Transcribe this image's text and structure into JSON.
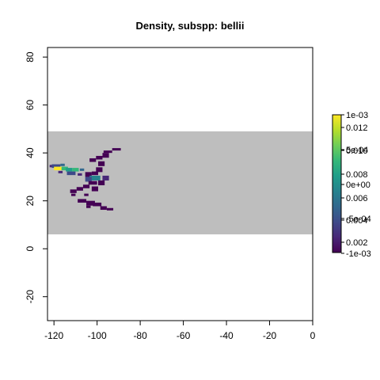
{
  "chart_data": {
    "type": "heatmap",
    "title": "Density, subspp: bellii",
    "xlabel": "",
    "ylabel": "",
    "xlim": [
      -123,
      0
    ],
    "ylim": [
      -30,
      84
    ],
    "x_ticks": [
      -120,
      -100,
      -80,
      -60,
      -40,
      -20,
      0
    ],
    "y_ticks": [
      -20,
      0,
      20,
      40,
      60,
      80
    ],
    "x_tick_labels": [
      "-120",
      "-100",
      "-80",
      "-60",
      "-40",
      "-20",
      "0"
    ],
    "y_tick_labels": [
      "-20",
      "0",
      "20",
      "40",
      "60",
      "80"
    ],
    "background_band": {
      "ymin": 6,
      "ymax": 49,
      "color": "#bebebe"
    },
    "colorscale": "viridis",
    "legend_position": "right",
    "legend_labels": [
      "1e-03",
      "0.012",
      "5e-04",
      "0.010",
      "0.008",
      "0e+00",
      "0.006",
      "-5e-04",
      "0.004",
      "0.002",
      "-1e-03"
    ],
    "cells": [
      {
        "x": -91,
        "y": 41.5,
        "w": 4,
        "h": 1,
        "v": 0.0005
      },
      {
        "x": -95,
        "y": 40.5,
        "w": 4,
        "h": 1,
        "v": 0.0006
      },
      {
        "x": -96,
        "y": 39,
        "w": 3,
        "h": 2,
        "v": 0.0005
      },
      {
        "x": -99,
        "y": 38,
        "w": 3,
        "h": 1.5,
        "v": 0.0007
      },
      {
        "x": -102,
        "y": 37,
        "w": 3,
        "h": 1.5,
        "v": 0.0005
      },
      {
        "x": -98,
        "y": 35.5,
        "w": 3,
        "h": 2,
        "v": 0.0008
      },
      {
        "x": -99,
        "y": 33,
        "w": 3,
        "h": 2,
        "v": 0.001
      },
      {
        "x": -101,
        "y": 31.5,
        "w": 3,
        "h": 1.5,
        "v": 0.0012
      },
      {
        "x": -104,
        "y": 31,
        "w": 3,
        "h": 2,
        "v": 0.0012
      },
      {
        "x": -101,
        "y": 29.5,
        "w": 5,
        "h": 2,
        "v": 0.0055
      },
      {
        "x": -104,
        "y": 29,
        "w": 3,
        "h": 2,
        "v": 0.003
      },
      {
        "x": -96,
        "y": 29.5,
        "w": 3,
        "h": 2,
        "v": 0.0015
      },
      {
        "x": -98,
        "y": 27.5,
        "w": 3,
        "h": 2,
        "v": 0.001
      },
      {
        "x": -102,
        "y": 27.5,
        "w": 4,
        "h": 1.5,
        "v": 0.0012
      },
      {
        "x": -105,
        "y": 26,
        "w": 3,
        "h": 1.5,
        "v": 0.0008
      },
      {
        "x": -101,
        "y": 25,
        "w": 3,
        "h": 2,
        "v": 0.0009
      },
      {
        "x": -108,
        "y": 25,
        "w": 3,
        "h": 1.5,
        "v": 0.0007
      },
      {
        "x": -111,
        "y": 24,
        "w": 3,
        "h": 1.5,
        "v": 0.0006
      },
      {
        "x": -111,
        "y": 22.5,
        "w": 2,
        "h": 1,
        "v": 0.0005
      },
      {
        "x": -105,
        "y": 22.5,
        "w": 2,
        "h": 1,
        "v": 0.0004
      },
      {
        "x": -107,
        "y": 20,
        "w": 4,
        "h": 1.5,
        "v": 0.0008
      },
      {
        "x": -103,
        "y": 19,
        "w": 4,
        "h": 2,
        "v": 0.001
      },
      {
        "x": -100,
        "y": 18.5,
        "w": 4,
        "h": 1.5,
        "v": 0.0008
      },
      {
        "x": -97,
        "y": 17,
        "w": 3,
        "h": 1.5,
        "v": 0.0007
      },
      {
        "x": -94,
        "y": 16.5,
        "w": 3,
        "h": 1,
        "v": 0.0006
      },
      {
        "x": -104,
        "y": 17.5,
        "w": 2,
        "h": 1,
        "v": 0.0005
      },
      {
        "x": -121,
        "y": 34.5,
        "w": 2,
        "h": 1,
        "v": 0.0015
      },
      {
        "x": -119,
        "y": 34.5,
        "w": 4,
        "h": 1.5,
        "v": 0.0035
      },
      {
        "x": -118,
        "y": 33.5,
        "w": 4,
        "h": 1.5,
        "v": 0.013
      },
      {
        "x": -115,
        "y": 33.5,
        "w": 3,
        "h": 1.5,
        "v": 0.009
      },
      {
        "x": -116,
        "y": 35,
        "w": 2,
        "h": 1,
        "v": 0.004
      },
      {
        "x": -113,
        "y": 33,
        "w": 3,
        "h": 1.5,
        "v": 0.007
      },
      {
        "x": -110,
        "y": 33,
        "w": 3,
        "h": 1.5,
        "v": 0.0085
      },
      {
        "x": -112,
        "y": 31.5,
        "w": 4,
        "h": 1.5,
        "v": 0.003
      },
      {
        "x": -107,
        "y": 33,
        "w": 2,
        "h": 1,
        "v": 0.004
      },
      {
        "x": -117,
        "y": 32,
        "w": 2,
        "h": 1,
        "v": 0.002
      },
      {
        "x": -108,
        "y": 31,
        "w": 2,
        "h": 1,
        "v": 0.002
      }
    ]
  }
}
